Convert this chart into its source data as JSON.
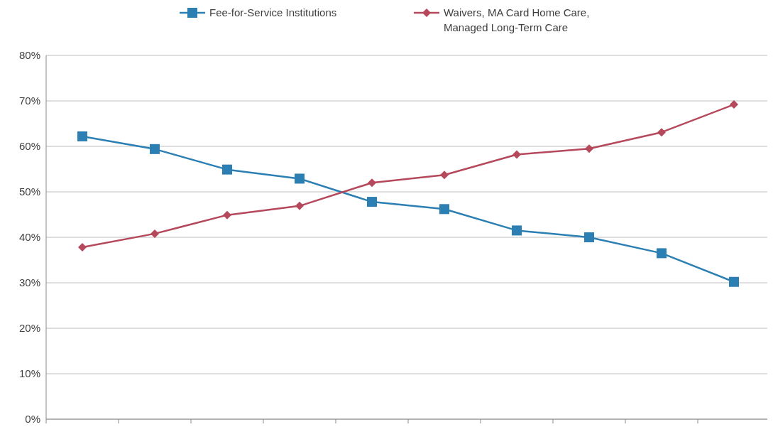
{
  "chart_data": {
    "type": "line",
    "categories": [
      null,
      null,
      null,
      null,
      null,
      null,
      null,
      null,
      null,
      null
    ],
    "ylim": [
      0,
      80
    ],
    "yticks": [
      {
        "value": 0,
        "label": "0%"
      },
      {
        "value": 10,
        "label": "10%"
      },
      {
        "value": 20,
        "label": "20%"
      },
      {
        "value": 30,
        "label": "30%"
      },
      {
        "value": 40,
        "label": "40%"
      },
      {
        "value": 50,
        "label": "50%"
      },
      {
        "value": 60,
        "label": "60%"
      },
      {
        "value": 70,
        "label": "70%"
      },
      {
        "value": 80,
        "label": "80%"
      }
    ],
    "grid": "y",
    "legend": "top",
    "series": [
      {
        "name": "Fee-for-Service Institutions",
        "color": "#2b7fb3",
        "marker": "square",
        "values": [
          62.2,
          59.4,
          54.9,
          52.9,
          47.8,
          46.2,
          41.5,
          40,
          36.5,
          30.2
        ]
      },
      {
        "name": "Waivers, MA Card Home Care, Managed Long-Term Care",
        "color": "#b5495b",
        "marker": "diamond",
        "values": [
          37.8,
          40.8,
          44.9,
          46.9,
          52,
          53.7,
          58.2,
          59.5,
          63.1,
          69.2
        ]
      }
    ]
  }
}
